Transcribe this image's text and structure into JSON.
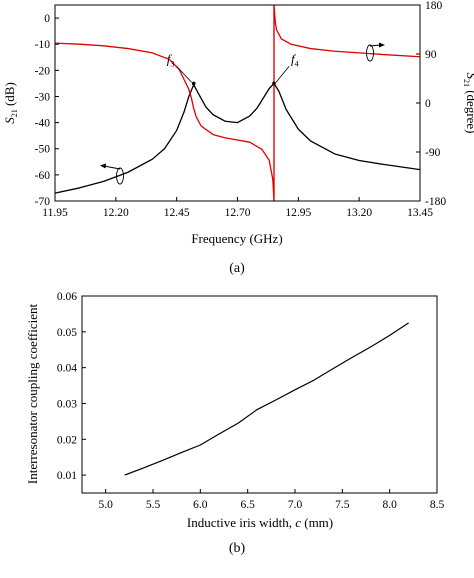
{
  "chart_data": [
    {
      "type": "line",
      "panel": "(a)",
      "xlabel": "Frequency (GHz)",
      "ylabel_left": [
        "S",
        "21",
        " (dB)"
      ],
      "ylabel_right": [
        "S",
        "21",
        " (degree)"
      ],
      "xlim": [
        11.95,
        13.45
      ],
      "ylim_left": [
        -70,
        5
      ],
      "ylim_right": [
        -180,
        180
      ],
      "x_ticks": [
        "11.95",
        "12.20",
        "12.45",
        "12.70",
        "12.95",
        "13.20",
        "13.45"
      ],
      "y_ticks_left": [
        "0",
        "-10",
        "-20",
        "-30",
        "-40",
        "-50",
        "-60",
        "-70"
      ],
      "y_ticks_right": [
        "180",
        "90",
        "0",
        "-90",
        "-180"
      ],
      "annotations": [
        {
          "base": "f",
          "sub": "3",
          "x": 12.52,
          "y": -25
        },
        {
          "base": "f",
          "sub": "4",
          "x": 12.85,
          "y": -25
        }
      ],
      "series": [
        {
          "axis": "left",
          "color": "#000000",
          "x": [
            11.95,
            12.05,
            12.15,
            12.25,
            12.35,
            12.4,
            12.45,
            12.48,
            12.5,
            12.52,
            12.54,
            12.57,
            12.6,
            12.65,
            12.7,
            12.75,
            12.78,
            12.81,
            12.83,
            12.85,
            12.87,
            12.9,
            12.95,
            13.0,
            13.1,
            13.2,
            13.3,
            13.45
          ],
          "y": [
            -67,
            -65,
            -62.5,
            -59,
            -54,
            -50,
            -43,
            -36,
            -30,
            -25.5,
            -29,
            -34,
            -37,
            -39.5,
            -40,
            -37.5,
            -34.5,
            -30,
            -27,
            -25,
            -28,
            -35,
            -42.5,
            -47,
            -52,
            -54.5,
            -56,
            -58
          ]
        },
        {
          "axis": "right",
          "color": "#e00000",
          "x": [
            11.95,
            12.05,
            12.15,
            12.25,
            12.35,
            12.42,
            12.46,
            12.5,
            12.51,
            12.52,
            12.53,
            12.55,
            12.6,
            12.65,
            12.7,
            12.75,
            12.8,
            12.83,
            12.845,
            12.85,
            12.85,
            12.855,
            12.86,
            12.88,
            12.92,
            13.0,
            13.1,
            13.2,
            13.3,
            13.45
          ],
          "y": [
            110,
            108,
            105,
            100,
            92,
            80,
            62,
            25,
            10,
            -10,
            -25,
            -42,
            -58,
            -64,
            -68,
            -72,
            -85,
            -105,
            -140,
            -180,
            180,
            150,
            135,
            118,
            108,
            100,
            95,
            92,
            89,
            85
          ]
        }
      ]
    },
    {
      "type": "line",
      "panel": "(b)",
      "xlabel": "Inductive iris width, ",
      "xlabel_var": "c",
      "xlabel_unit": " (mm)",
      "ylabel": "Interresonator coupling coefficient",
      "xlim": [
        4.75,
        8.5
      ],
      "ylim": [
        0.005,
        0.06
      ],
      "x_ticks": [
        "5.0",
        "5.5",
        "6.0",
        "6.5",
        "7.0",
        "7.5",
        "8.0",
        "8.5"
      ],
      "y_ticks": [
        "0.01",
        "0.02",
        "0.03",
        "0.04",
        "0.05",
        "0.06"
      ],
      "series": [
        {
          "color": "#000000",
          "x": [
            5.2,
            5.4,
            5.6,
            5.8,
            6.0,
            6.2,
            6.4,
            6.6,
            6.8,
            7.0,
            7.2,
            7.4,
            7.6,
            7.8,
            8.0,
            8.2
          ],
          "y": [
            0.01,
            0.012,
            0.0141,
            0.0163,
            0.0184,
            0.0215,
            0.0245,
            0.0283,
            0.031,
            0.0338,
            0.0365,
            0.0397,
            0.0428,
            0.0458,
            0.049,
            0.0525
          ]
        }
      ]
    }
  ]
}
